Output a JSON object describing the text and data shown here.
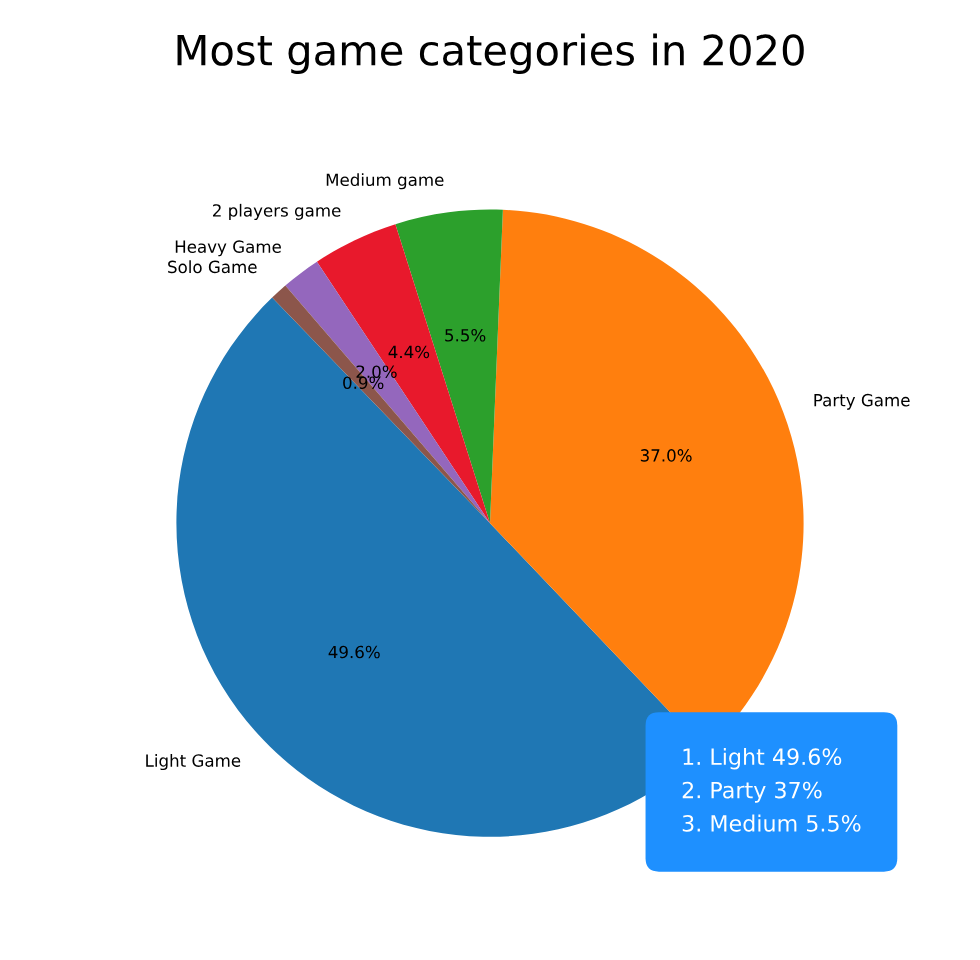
{
  "chart_data": {
    "type": "pie",
    "title": "Most game categories in 2020",
    "categories": [
      "Light Game",
      "Party Game",
      "Medium game",
      "2 players game",
      "Heavy Game",
      "Solo Game"
    ],
    "values": [
      49.6,
      37.0,
      5.5,
      4.4,
      2.0,
      0.9
    ],
    "value_labels": [
      "49.6%",
      "37.0%",
      "5.5%",
      "4.4%",
      "2.0%",
      "0.9%"
    ],
    "colors": [
      "#1f77b4",
      "#ff7f0e",
      "#2ca02c",
      "#e8192c",
      "#9467bd",
      "#8c564b"
    ],
    "annotations": [
      "1. Light 49.6%\n2. Party 37%\n3. Medium 5.5%"
    ],
    "legend": false
  }
}
